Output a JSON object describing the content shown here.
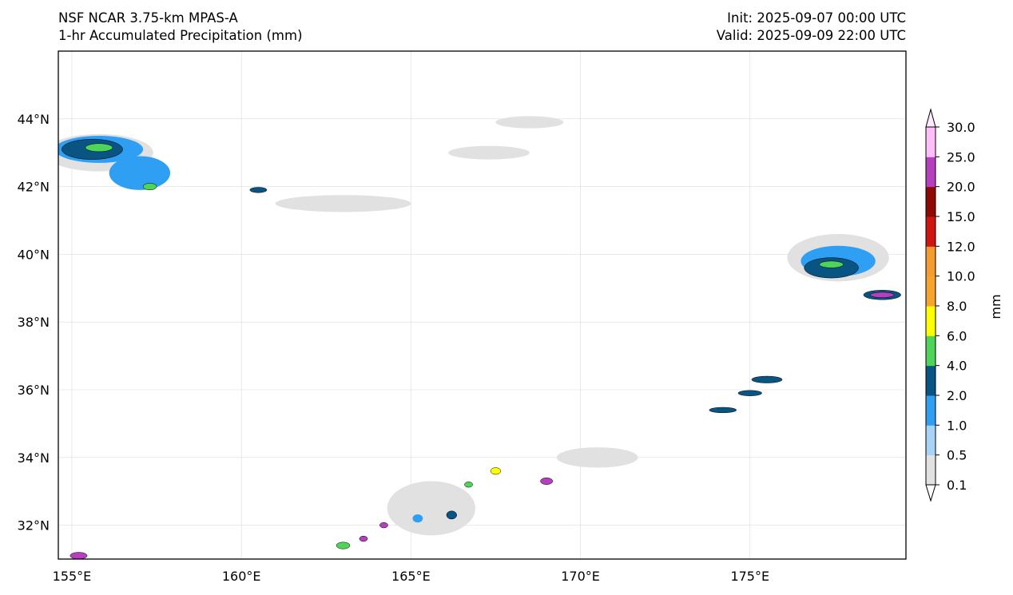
{
  "header": {
    "model_line": "NSF NCAR 3.75-km MPAS-A",
    "field_line": "1-hr Accumulated Precipitation (mm)",
    "init_line": "Init: 2025-09-07 00:00 UTC",
    "valid_line": "Valid: 2025-09-09 22:00 UTC"
  },
  "map": {
    "lon_range": [
      154.6,
      179.6
    ],
    "lat_range": [
      31.0,
      46.0
    ],
    "lon_ticks": [
      {
        "value": 155,
        "label": "155°E"
      },
      {
        "value": 160,
        "label": "160°E"
      },
      {
        "value": 165,
        "label": "165°E"
      },
      {
        "value": 170,
        "label": "170°E"
      },
      {
        "value": 175,
        "label": "175°E"
      }
    ],
    "lat_ticks": [
      {
        "value": 32,
        "label": "32°N"
      },
      {
        "value": 34,
        "label": "34°N"
      },
      {
        "value": 36,
        "label": "36°N"
      },
      {
        "value": 38,
        "label": "38°N"
      },
      {
        "value": 40,
        "label": "40°N"
      },
      {
        "value": 42,
        "label": "42°N"
      },
      {
        "value": 44,
        "label": "44°N"
      }
    ],
    "precip_features": [
      {
        "lon": 155.8,
        "lat": 43.0,
        "rlon": 1.6,
        "rlat": 0.55,
        "level": 0
      },
      {
        "lon": 155.8,
        "lat": 43.1,
        "rlon": 1.3,
        "rlat": 0.4,
        "level": 2
      },
      {
        "lon": 155.6,
        "lat": 43.1,
        "rlon": 0.9,
        "rlat": 0.3,
        "level": 3
      },
      {
        "lon": 155.8,
        "lat": 43.15,
        "rlon": 0.4,
        "rlat": 0.12,
        "level": 4
      },
      {
        "lon": 157.0,
        "lat": 42.4,
        "rlon": 0.9,
        "rlat": 0.5,
        "level": 2
      },
      {
        "lon": 157.3,
        "lat": 42.0,
        "rlon": 0.2,
        "rlat": 0.1,
        "level": 4
      },
      {
        "lon": 160.5,
        "lat": 41.9,
        "rlon": 0.25,
        "rlat": 0.08,
        "level": 3
      },
      {
        "lon": 163.0,
        "lat": 41.5,
        "rlon": 2.0,
        "rlat": 0.25,
        "level": 0
      },
      {
        "lon": 167.3,
        "lat": 43.0,
        "rlon": 1.2,
        "rlat": 0.2,
        "level": 0
      },
      {
        "lon": 168.5,
        "lat": 43.9,
        "rlon": 1.0,
        "rlat": 0.18,
        "level": 0
      },
      {
        "lon": 177.6,
        "lat": 39.9,
        "rlon": 1.5,
        "rlat": 0.7,
        "level": 0
      },
      {
        "lon": 177.6,
        "lat": 39.8,
        "rlon": 1.1,
        "rlat": 0.45,
        "level": 2
      },
      {
        "lon": 177.4,
        "lat": 39.6,
        "rlon": 0.8,
        "rlat": 0.3,
        "level": 3
      },
      {
        "lon": 177.4,
        "lat": 39.7,
        "rlon": 0.35,
        "rlat": 0.1,
        "level": 4
      },
      {
        "lon": 178.9,
        "lat": 38.8,
        "rlon": 0.55,
        "rlat": 0.14,
        "level": 3
      },
      {
        "lon": 178.9,
        "lat": 38.8,
        "rlon": 0.35,
        "rlat": 0.08,
        "level": 10
      },
      {
        "lon": 175.5,
        "lat": 36.3,
        "rlon": 0.45,
        "rlat": 0.1,
        "level": 3
      },
      {
        "lon": 175.0,
        "lat": 35.9,
        "rlon": 0.35,
        "rlat": 0.08,
        "level": 3
      },
      {
        "lon": 174.2,
        "lat": 35.4,
        "rlon": 0.4,
        "rlat": 0.08,
        "level": 3
      },
      {
        "lon": 170.5,
        "lat": 34.0,
        "rlon": 1.2,
        "rlat": 0.3,
        "level": 0
      },
      {
        "lon": 169.0,
        "lat": 33.3,
        "rlon": 0.18,
        "rlat": 0.1,
        "level": 10
      },
      {
        "lon": 167.5,
        "lat": 33.6,
        "rlon": 0.15,
        "rlat": 0.1,
        "level": 5
      },
      {
        "lon": 166.7,
        "lat": 33.2,
        "rlon": 0.12,
        "rlat": 0.08,
        "level": 4
      },
      {
        "lon": 165.6,
        "lat": 32.5,
        "rlon": 1.3,
        "rlat": 0.8,
        "level": 0
      },
      {
        "lon": 165.2,
        "lat": 32.2,
        "rlon": 0.15,
        "rlat": 0.12,
        "level": 2
      },
      {
        "lon": 166.2,
        "lat": 32.3,
        "rlon": 0.15,
        "rlat": 0.12,
        "level": 3
      },
      {
        "lon": 164.2,
        "lat": 32.0,
        "rlon": 0.12,
        "rlat": 0.08,
        "level": 10
      },
      {
        "lon": 163.6,
        "lat": 31.6,
        "rlon": 0.12,
        "rlat": 0.08,
        "level": 10
      },
      {
        "lon": 163.0,
        "lat": 31.4,
        "rlon": 0.2,
        "rlat": 0.1,
        "level": 4
      },
      {
        "lon": 155.2,
        "lat": 31.1,
        "rlon": 0.25,
        "rlat": 0.1,
        "level": 10
      }
    ]
  },
  "colorbar": {
    "unit_label": "mm",
    "levels": [
      0.1,
      0.5,
      1.0,
      2.0,
      4.0,
      6.0,
      8.0,
      10.0,
      12.0,
      15.0,
      20.0,
      25.0,
      30.0
    ],
    "labels": [
      "0.1",
      "0.5",
      "1.0",
      "2.0",
      "4.0",
      "6.0",
      "8.0",
      "10.0",
      "12.0",
      "15.0",
      "20.0",
      "25.0",
      "30.0"
    ],
    "colors": [
      "#e1e1e1",
      "#a6d3f6",
      "#2f9ff4",
      "#085482",
      "#4fd45a",
      "#ffff00",
      "#f7a42e",
      "#f59c31",
      "#d01410",
      "#8e0805",
      "#b63fbe",
      "#ffbdf9"
    ],
    "under_color": "#ffffff",
    "over_color": "#ffeaff"
  }
}
